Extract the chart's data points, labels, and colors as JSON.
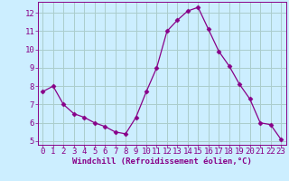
{
  "x": [
    0,
    1,
    2,
    3,
    4,
    5,
    6,
    7,
    8,
    9,
    10,
    11,
    12,
    13,
    14,
    15,
    16,
    17,
    18,
    19,
    20,
    21,
    22,
    23
  ],
  "y": [
    7.7,
    8.0,
    7.0,
    6.5,
    6.3,
    6.0,
    5.8,
    5.5,
    5.4,
    6.3,
    7.7,
    9.0,
    11.0,
    11.6,
    12.1,
    12.3,
    11.1,
    9.9,
    9.1,
    8.1,
    7.3,
    6.0,
    5.9,
    5.1
  ],
  "line_color": "#880088",
  "marker": "D",
  "marker_size": 2.5,
  "bg_color": "#cceeff",
  "grid_color": "#aacccc",
  "xlabel": "Windchill (Refroidissement éolien,°C)",
  "ylim": [
    4.8,
    12.6
  ],
  "xlim": [
    -0.5,
    23.5
  ],
  "yticks": [
    5,
    6,
    7,
    8,
    9,
    10,
    11,
    12
  ],
  "xticks": [
    0,
    1,
    2,
    3,
    4,
    5,
    6,
    7,
    8,
    9,
    10,
    11,
    12,
    13,
    14,
    15,
    16,
    17,
    18,
    19,
    20,
    21,
    22,
    23
  ],
  "tick_color": "#880088",
  "label_color": "#880088",
  "spine_color": "#880088",
  "tick_fontsize": 6.5,
  "xlabel_fontsize": 6.5
}
